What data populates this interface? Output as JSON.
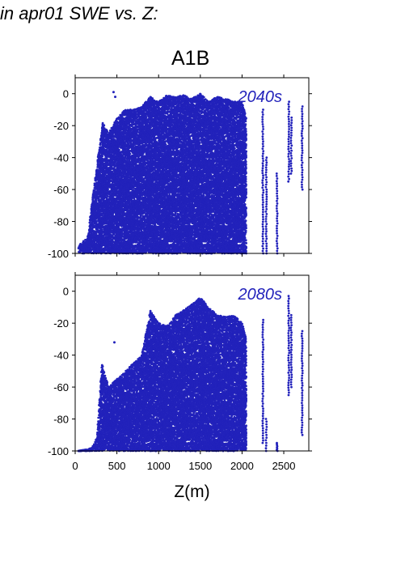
{
  "header": {
    "title": "in apr01 SWE vs. Z:"
  },
  "scenario": "A1B",
  "colors": {
    "points": "#2222bb",
    "frame": "#000000"
  },
  "chart_data": [
    {
      "type": "scatter",
      "title": "A1B",
      "label": "2040s",
      "xlabel": "Z(m)",
      "ylabel": "",
      "xlim": [
        0,
        2800
      ],
      "ylim": [
        -100,
        10
      ],
      "yticks": [
        0,
        -20,
        -40,
        -60,
        -80,
        -100
      ],
      "xticks": [
        0,
        500,
        1000,
        1500,
        2000,
        2500
      ],
      "envelope": {
        "x": [
          40,
          150,
          220,
          300,
          330,
          400,
          500,
          600,
          700,
          800,
          900,
          1000,
          1100,
          1200,
          1300,
          1400,
          1500,
          1600,
          1700,
          1800,
          1900,
          2000,
          2050
        ],
        "y_max": [
          -95,
          -90,
          -60,
          -30,
          -18,
          -25,
          -15,
          -10,
          -10,
          -8,
          -2,
          -5,
          -1,
          -2,
          -1,
          -3,
          0,
          -5,
          -2,
          -3,
          -5,
          -5,
          -15
        ]
      },
      "isolated_columns": [
        {
          "x": 2250,
          "y_range": [
            -100,
            -10
          ]
        },
        {
          "x": 2290,
          "y_range": [
            -100,
            -40
          ]
        },
        {
          "x": 2420,
          "y_range": [
            -100,
            -50
          ]
        },
        {
          "x": 2560,
          "y_range": [
            -55,
            -5
          ]
        },
        {
          "x": 2590,
          "y_range": [
            -50,
            -15
          ]
        },
        {
          "x": 2720,
          "y_range": [
            -60,
            -8
          ]
        }
      ],
      "outliers": [
        {
          "x": 460,
          "y": 1
        },
        {
          "x": 480,
          "y": -2
        }
      ]
    },
    {
      "type": "scatter",
      "title": "A1B",
      "label": "2080s",
      "xlabel": "Z(m)",
      "ylabel": "",
      "xlim": [
        0,
        2800
      ],
      "ylim": [
        -100,
        10
      ],
      "yticks": [
        0,
        -20,
        -40,
        -60,
        -80,
        -100
      ],
      "xticks": [
        0,
        500,
        1000,
        1500,
        2000,
        2500
      ],
      "envelope": {
        "x": [
          40,
          150,
          200,
          260,
          320,
          400,
          500,
          600,
          700,
          800,
          900,
          1000,
          1100,
          1200,
          1300,
          1400,
          1500,
          1600,
          1700,
          1800,
          1900,
          2000,
          2050
        ],
        "y_max": [
          -100,
          -99,
          -98,
          -92,
          -45,
          -60,
          -55,
          -50,
          -45,
          -40,
          -12,
          -20,
          -22,
          -15,
          -12,
          -8,
          -4,
          -10,
          -15,
          -16,
          -15,
          -20,
          -30
        ]
      },
      "isolated_columns": [
        {
          "x": 2250,
          "y_range": [
            -95,
            -18
          ]
        },
        {
          "x": 2290,
          "y_range": [
            -100,
            -80
          ]
        },
        {
          "x": 2420,
          "y_range": [
            -100,
            -95
          ]
        },
        {
          "x": 2560,
          "y_range": [
            -65,
            -3
          ]
        },
        {
          "x": 2590,
          "y_range": [
            -60,
            -15
          ]
        },
        {
          "x": 2720,
          "y_range": [
            -90,
            -25
          ]
        }
      ],
      "outliers": [
        {
          "x": 470,
          "y": -32
        }
      ]
    }
  ]
}
